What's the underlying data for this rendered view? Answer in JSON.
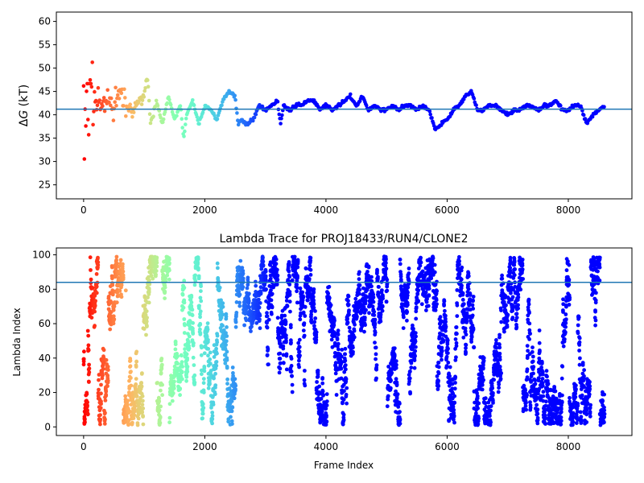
{
  "chart_data": [
    {
      "type": "scatter",
      "title": "",
      "xlabel": "",
      "ylabel_prefix": "Δ",
      "ylabel_var": "G",
      "ylabel_suffix": " (kT)",
      "xlim": [
        -450,
        9050
      ],
      "ylim": [
        22,
        62
      ],
      "xticks": [
        0,
        2000,
        4000,
        6000,
        8000
      ],
      "yticks": [
        25,
        30,
        35,
        40,
        45,
        50,
        55,
        60
      ],
      "hline": 41.2,
      "hline_color": "#1f77b4",
      "colormap": "rainbow (red at frame 0 to violet at later frames)",
      "n_frames": 8600,
      "trace_knots": {
        "x": [
          0,
          100,
          200,
          300,
          400,
          500,
          600,
          700,
          800,
          900,
          1000,
          1050,
          1100,
          1200,
          1300,
          1400,
          1500,
          1600,
          1650,
          1700,
          1800,
          1900,
          2000,
          2100,
          2200,
          2300,
          2400,
          2500,
          2550,
          2600,
          2700,
          2800,
          2900,
          3000,
          3100,
          3200,
          3250,
          3300,
          3400,
          3500,
          3600,
          3700,
          3800,
          3900,
          4000,
          4100,
          4200,
          4300,
          4400,
          4500,
          4600,
          4700,
          4800,
          4900,
          5000,
          5100,
          5200,
          5300,
          5400,
          5500,
          5600,
          5700,
          5800,
          5900,
          6000,
          6100,
          6200,
          6300,
          6400,
          6500,
          6600,
          6700,
          6800,
          6900,
          7000,
          7100,
          7200,
          7300,
          7400,
          7500,
          7600,
          7700,
          7800,
          7900,
          8000,
          8100,
          8200,
          8300,
          8400,
          8500,
          8600
        ],
        "y": [
          41,
          43,
          44,
          42,
          43,
          41,
          45,
          42,
          41,
          43,
          44,
          49,
          38,
          43,
          38,
          44,
          39,
          42,
          35,
          40,
          43,
          38,
          42,
          41,
          39,
          43,
          45,
          44,
          38,
          39,
          38,
          39,
          42,
          41,
          42,
          43,
          38,
          42,
          41,
          42,
          42,
          43,
          43,
          41,
          42,
          41,
          42,
          43,
          44,
          42,
          44,
          41,
          42,
          41,
          41,
          42,
          41,
          42,
          42,
          41,
          42,
          41,
          37,
          38,
          39,
          41,
          42,
          44,
          45,
          41,
          41,
          42,
          42,
          41,
          40,
          41,
          41,
          42,
          42,
          41,
          42,
          42,
          43,
          41,
          41,
          42,
          42,
          38,
          40,
          41,
          42
        ]
      }
    },
    {
      "type": "scatter",
      "title": "Lambda Trace for PROJ18433/RUN4/CLONE2",
      "xlabel": "Frame Index",
      "ylabel": "Lambda Index",
      "xlim": [
        -450,
        9050
      ],
      "ylim": [
        -5,
        104
      ],
      "xticks": [
        0,
        2000,
        4000,
        6000,
        8000
      ],
      "yticks": [
        0,
        20,
        40,
        60,
        80,
        100
      ],
      "hline": 84,
      "hline_color": "#1f77b4",
      "colormap": "rainbow (red at frame 0 to violet at later frames)",
      "n_frames": 8600,
      "lambda_range": [
        1,
        99
      ]
    }
  ]
}
